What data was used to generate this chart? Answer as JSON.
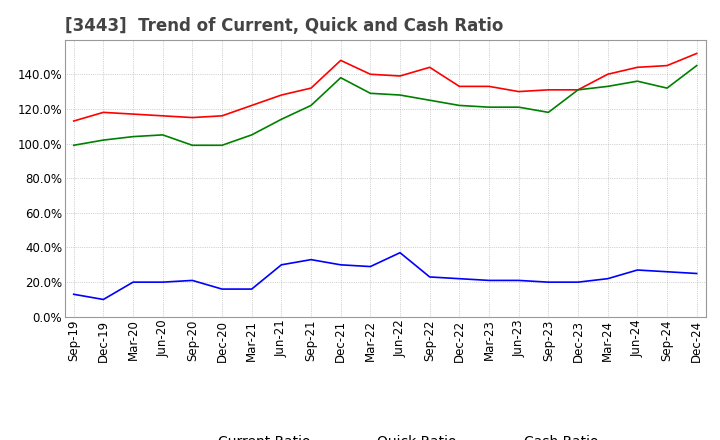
{
  "title": "[3443]  Trend of Current, Quick and Cash Ratio",
  "x_labels": [
    "Sep-19",
    "Dec-19",
    "Mar-20",
    "Jun-20",
    "Sep-20",
    "Dec-20",
    "Mar-21",
    "Jun-21",
    "Sep-21",
    "Dec-21",
    "Mar-22",
    "Jun-22",
    "Sep-22",
    "Dec-22",
    "Mar-23",
    "Jun-23",
    "Sep-23",
    "Dec-23",
    "Mar-24",
    "Jun-24",
    "Sep-24",
    "Dec-24"
  ],
  "current_ratio": [
    113,
    118,
    117,
    116,
    115,
    116,
    122,
    128,
    132,
    148,
    140,
    139,
    144,
    133,
    133,
    130,
    131,
    131,
    140,
    144,
    145,
    152
  ],
  "quick_ratio": [
    99,
    102,
    104,
    105,
    99,
    99,
    105,
    114,
    122,
    138,
    129,
    128,
    125,
    122,
    121,
    121,
    118,
    131,
    133,
    136,
    132,
    145
  ],
  "cash_ratio": [
    13,
    10,
    20,
    20,
    21,
    16,
    16,
    30,
    33,
    30,
    29,
    37,
    23,
    22,
    21,
    21,
    20,
    20,
    22,
    27,
    26,
    25
  ],
  "current_color": "#ff0000",
  "quick_color": "#008000",
  "cash_color": "#0000ff",
  "background_color": "#ffffff",
  "grid_color": "#aaaaaa",
  "ylim": [
    0,
    160
  ],
  "yticks": [
    0,
    20,
    40,
    60,
    80,
    100,
    120,
    140
  ],
  "title_fontsize": 12,
  "legend_fontsize": 10,
  "tick_fontsize": 8.5
}
